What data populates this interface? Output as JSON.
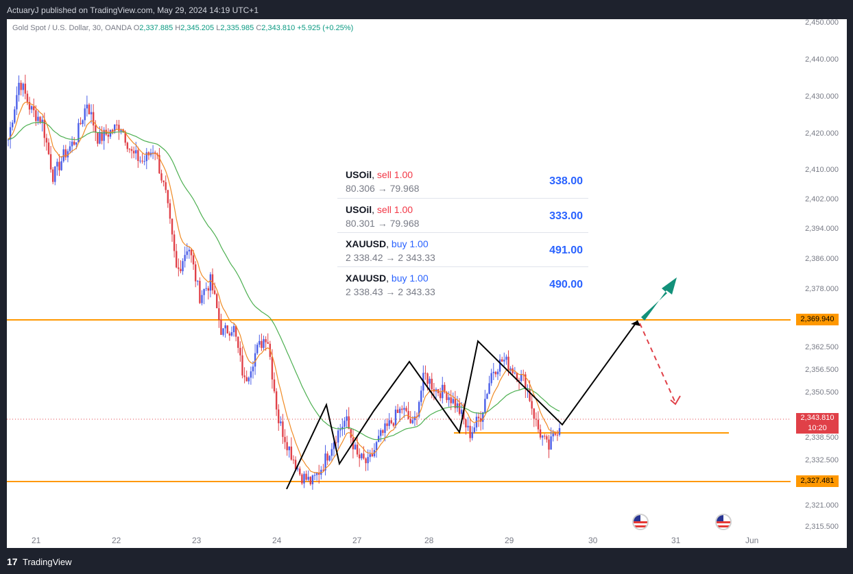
{
  "header": {
    "text": "ActuaryJ published on TradingView.com, May 29, 2024 14:19 UTC+1"
  },
  "symbol": {
    "name": "Gold Spot / U.S. Dollar, 30, OANDA",
    "o_label": "O",
    "o": "2,337.885",
    "h_label": "H",
    "h": "2,345.205",
    "l_label": "L",
    "l": "2,335.985",
    "c_label": "C",
    "c": "2,343.810",
    "change": "+5.925 (+0.25%)"
  },
  "trades": [
    {
      "symbol": "USOil",
      "side": "sell 1.00",
      "prices": "80.306 → 79.968",
      "pnl": "338.00"
    },
    {
      "symbol": "USOil",
      "side": "sell 1.00",
      "prices": "80.301 → 79.968",
      "pnl": "333.00"
    },
    {
      "symbol": "XAUUSD",
      "side": "buy 1.00",
      "prices": "2 338.42 → 2 343.33",
      "pnl": "491.00"
    },
    {
      "symbol": "XAUUSD",
      "side": "buy 1.00",
      "prices": "2 338.43 → 2 343.33",
      "pnl": "490.00"
    }
  ],
  "price_axis": [
    "2,450.000",
    "2,440.000",
    "2,430.000",
    "2,420.000",
    "2,410.000",
    "2,402.000",
    "2,394.000",
    "2,386.000",
    "2,378.000",
    "2,362.500",
    "2,356.500",
    "2,350.500",
    "2,338.500",
    "2,332.500",
    "2,321.000",
    "2,315.500"
  ],
  "price_tags": {
    "resistance": "2,369.940",
    "current": "2,343.810",
    "countdown": "10:20",
    "support": "2,327.481"
  },
  "time_axis": [
    "21",
    "22",
    "23",
    "24",
    "27",
    "28",
    "29",
    "30",
    "31",
    "Jun"
  ],
  "footer": {
    "brand": "TradingView",
    "logo": "17"
  },
  "colors": {
    "up": "#4a5ee8",
    "down": "#e04048",
    "ema_fast": "#f08a24",
    "ema_slow": "#4caf50",
    "level": "#ff9800",
    "projection": "#000000",
    "target_arrow": "#13917a",
    "alt_path": "#e04048"
  },
  "chart_data": {
    "type": "candlestick",
    "symbol": "Gold Spot / U.S. Dollar",
    "interval": "30",
    "levels": [
      2369.94,
      2340.0,
      2327.481
    ],
    "close_path": [
      [
        "21",
        2420
      ],
      [
        "21",
        2436
      ],
      [
        "21",
        2428
      ],
      [
        "21",
        2425
      ],
      [
        "21",
        2410
      ],
      [
        "21",
        2416
      ],
      [
        "21",
        2420
      ],
      [
        "22",
        2430
      ],
      [
        "22",
        2420
      ],
      [
        "22",
        2422
      ],
      [
        "22",
        2424
      ],
      [
        "22",
        2416
      ],
      [
        "22",
        2414
      ],
      [
        "22",
        2418
      ],
      [
        "23",
        2405
      ],
      [
        "23",
        2384
      ],
      [
        "23",
        2392
      ],
      [
        "23",
        2378
      ],
      [
        "23",
        2382
      ],
      [
        "23",
        2368
      ],
      [
        "23",
        2370
      ],
      [
        "23",
        2355
      ],
      [
        "23",
        2363
      ],
      [
        "23",
        2368
      ],
      [
        "23",
        2345
      ],
      [
        "24",
        2337
      ],
      [
        "24",
        2330
      ],
      [
        "24",
        2328
      ],
      [
        "24",
        2333
      ],
      [
        "24",
        2340
      ],
      [
        "24",
        2345
      ],
      [
        "27",
        2335
      ],
      [
        "27",
        2333
      ],
      [
        "27",
        2340
      ],
      [
        "27",
        2344
      ],
      [
        "27",
        2348
      ],
      [
        "27",
        2343
      ],
      [
        "28",
        2357
      ],
      [
        "28",
        2353
      ],
      [
        "28",
        2352
      ],
      [
        "28",
        2348
      ],
      [
        "28",
        2341
      ],
      [
        "28",
        2346
      ],
      [
        "29",
        2358
      ],
      [
        "29",
        2361
      ],
      [
        "29",
        2358
      ],
      [
        "29",
        2355
      ],
      [
        "29",
        2343
      ],
      [
        "29",
        2337
      ],
      [
        "29",
        2343.81
      ]
    ]
  }
}
